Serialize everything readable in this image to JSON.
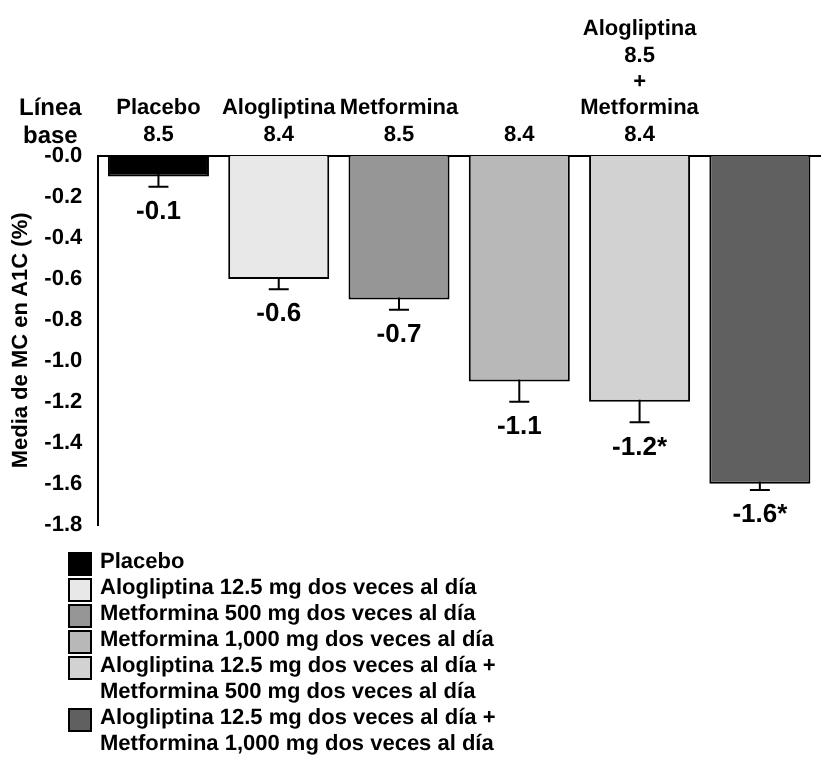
{
  "chart_data": {
    "type": "bar",
    "ylabel": "Media de MC en A1C (%)",
    "categories": [
      "Placebo\n8.5",
      "Alogliptina\n8.4",
      "Metformina\n8.5",
      "8.4",
      "Alogliptina\n8.5\n+\nMetformina\n8.4",
      null
    ],
    "series": [
      {
        "name": "Placebo",
        "color": "#000000",
        "values": [
          -0.1,
          null,
          null,
          null,
          null,
          null
        ],
        "errors": [
          0.05,
          null,
          null,
          null,
          null,
          null
        ],
        "value_labels": [
          "-0.1",
          null,
          null,
          null,
          null,
          null
        ]
      },
      {
        "name": "Alogliptina 12.5 mg dos veces al día",
        "color": "#e8e8e8",
        "values": [
          null,
          -0.6,
          null,
          null,
          null,
          null
        ],
        "errors": [
          null,
          0.05,
          null,
          null,
          null,
          null
        ],
        "value_labels": [
          null,
          "-0.6",
          null,
          null,
          null,
          null
        ]
      },
      {
        "name": "Metformina 500 mg dos veces al día",
        "color": "#969696",
        "values": [
          null,
          null,
          -0.7,
          null,
          null,
          null
        ],
        "errors": [
          null,
          null,
          0.05,
          null,
          null,
          null
        ],
        "value_labels": [
          null,
          null,
          "-0.7",
          null,
          null,
          null
        ]
      },
      {
        "name": "Metformina 1,000 mg dos veces al día",
        "color": "#b8b8b8",
        "values": [
          null,
          null,
          null,
          -1.1,
          null,
          null
        ],
        "errors": [
          null,
          null,
          null,
          0.1,
          null,
          null
        ],
        "value_labels": [
          null,
          null,
          null,
          "-1.1",
          null,
          null
        ]
      },
      {
        "name": "Alogliptina 12.5 mg dos veces al día + Metformina 500 mg dos veces al día",
        "color": "#d2d2d2",
        "values": [
          null,
          null,
          null,
          null,
          -1.2,
          null
        ],
        "errors": [
          null,
          null,
          null,
          null,
          0.1,
          null
        ],
        "value_labels": [
          null,
          null,
          null,
          null,
          "-1.2*",
          null
        ]
      },
      {
        "name": "Alogliptina 12.5 mg dos veces al día + Metformina 1,000 mg dos veces al día",
        "color": "#606060",
        "values": [
          null,
          null,
          null,
          null,
          null,
          -1.6
        ],
        "errors": [
          null,
          null,
          null,
          null,
          null,
          0.03
        ],
        "value_labels": [
          null,
          null,
          null,
          null,
          null,
          "-1.6*"
        ]
      }
    ],
    "ylim": [
      -1.8,
      0
    ],
    "yticks": [
      {
        "value": 0,
        "label": "-0.0"
      },
      {
        "value": -0.2,
        "label": "-0.2"
      },
      {
        "value": -0.4,
        "label": "-0.4"
      },
      {
        "value": -0.6,
        "label": "-0.6"
      },
      {
        "value": -0.8,
        "label": "-0.8"
      },
      {
        "value": -1.0,
        "label": "-1.0"
      },
      {
        "value": -1.2,
        "label": "-1.2"
      },
      {
        "value": -1.4,
        "label": "-1.4"
      },
      {
        "value": -1.6,
        "label": "-1.6"
      },
      {
        "value": -1.8,
        "label": "-1.8"
      }
    ],
    "annotations": [
      "Línea base"
    ],
    "grid": false,
    "legend": "bottom left"
  }
}
